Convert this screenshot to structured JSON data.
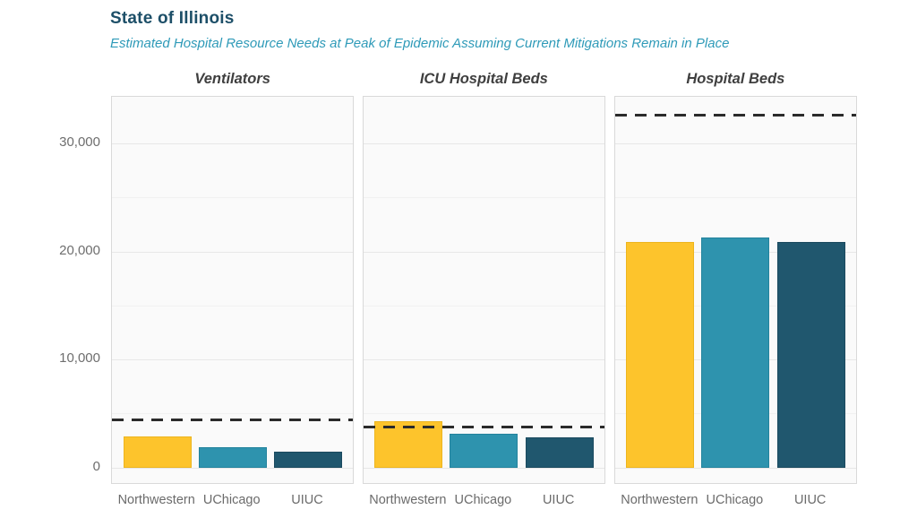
{
  "header": {
    "title": "State of Illinois",
    "subtitle": "Estimated Hospital Resource Needs at Peak of Epidemic Assuming Current Mitigations Remain in Place"
  },
  "colors": {
    "title_text": "#1d4f68",
    "subtitle_text": "#2e9ab8",
    "panel_title_text": "#3f3f3f",
    "axis_text": "#6e6e6e",
    "panel_background": "#fafafa",
    "panel_border": "#d9d9d9",
    "grid_major": "#e7e7e7",
    "grid_minor": "#f1f1f1",
    "dashed_line": "#2b2b2b",
    "series": {
      "Northwestern": {
        "fill": "#fdc42c",
        "edge": "#edb51f"
      },
      "UChicago": {
        "fill": "#2e93ae",
        "edge": "#23839d"
      },
      "UIUC": {
        "fill": "#20576e",
        "edge": "#1b4a5f"
      }
    }
  },
  "chart_data": {
    "type": "bar",
    "title": "State of Illinois",
    "subtitle": "Estimated Hospital Resource Needs at Peak of Epidemic Assuming Current Mitigations Remain in Place",
    "categories": [
      "Northwestern",
      "UChicago",
      "UIUC"
    ],
    "panels": [
      {
        "label": "Ventilators",
        "values": [
          2850,
          1850,
          1500
        ],
        "capacity_line": 4450
      },
      {
        "label": "ICU Hospital Beds",
        "values": [
          4300,
          3100,
          2770
        ],
        "capacity_line": 3730
      },
      {
        "label": "Hospital Beds",
        "values": [
          20900,
          21300,
          20900
        ],
        "capacity_line": 32600
      }
    ],
    "capacity_line_meaning": "dashed line = estimated current resource capacity",
    "yticks": [
      0,
      10000,
      20000,
      30000
    ],
    "ytick_labels": [
      "0",
      "10,000",
      "20,000",
      "30,000"
    ],
    "ylim": [
      0,
      34300
    ],
    "grid": "horizontal, minor every 5000, major every 10000",
    "legend": false
  }
}
